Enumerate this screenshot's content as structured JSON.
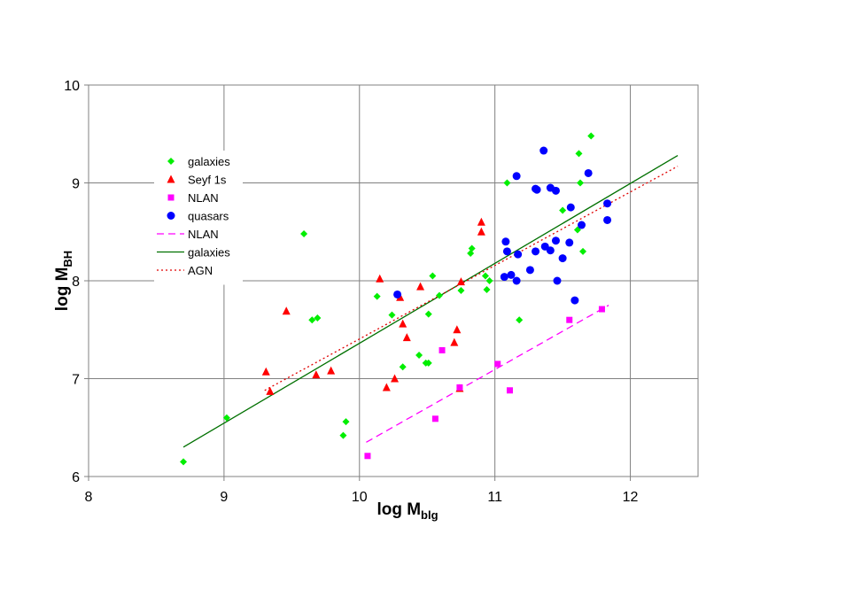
{
  "chart_data": {
    "type": "scatter",
    "xlabel": "log M",
    "xlabel_sub": "blg",
    "ylabel": "log M",
    "ylabel_sub": "BH",
    "xlim": [
      8,
      12.5
    ],
    "ylim": [
      6,
      10
    ],
    "x_ticks": [
      "8",
      "9",
      "10",
      "11",
      "12"
    ],
    "y_ticks": [
      "6",
      "7",
      "8",
      "9",
      "10"
    ],
    "grid": true,
    "legend_position": "left",
    "series": [
      {
        "name": "galaxies",
        "kind": "points",
        "marker": "diamond",
        "color": "#00ee00",
        "points": [
          [
            8.7,
            6.15
          ],
          [
            9.02,
            6.6
          ],
          [
            9.59,
            8.48
          ],
          [
            9.65,
            7.6
          ],
          [
            9.69,
            7.62
          ],
          [
            9.88,
            6.42
          ],
          [
            9.9,
            6.56
          ],
          [
            10.13,
            7.84
          ],
          [
            10.24,
            7.65
          ],
          [
            10.32,
            7.12
          ],
          [
            10.44,
            7.24
          ],
          [
            10.49,
            7.16
          ],
          [
            10.51,
            7.16
          ],
          [
            10.51,
            7.66
          ],
          [
            10.54,
            8.05
          ],
          [
            10.59,
            7.85
          ],
          [
            10.75,
            7.9
          ],
          [
            10.82,
            8.28
          ],
          [
            10.83,
            8.33
          ],
          [
            10.93,
            8.05
          ],
          [
            10.94,
            7.91
          ],
          [
            10.96,
            8.0
          ],
          [
            11.09,
            9.0
          ],
          [
            11.18,
            7.6
          ],
          [
            11.5,
            8.72
          ],
          [
            11.61,
            8.52
          ],
          [
            11.62,
            9.3
          ],
          [
            11.63,
            9.0
          ],
          [
            11.65,
            8.3
          ],
          [
            11.71,
            9.48
          ]
        ]
      },
      {
        "name": "Seyf 1s",
        "kind": "points",
        "marker": "triangle",
        "color": "#ff0000",
        "points": [
          [
            9.31,
            7.07
          ],
          [
            9.34,
            6.87
          ],
          [
            9.46,
            7.69
          ],
          [
            9.68,
            7.04
          ],
          [
            9.79,
            7.08
          ],
          [
            10.15,
            8.02
          ],
          [
            10.2,
            6.91
          ],
          [
            10.26,
            7.0
          ],
          [
            10.3,
            7.83
          ],
          [
            10.32,
            7.56
          ],
          [
            10.35,
            7.42
          ],
          [
            10.45,
            7.94
          ],
          [
            10.72,
            7.5
          ],
          [
            10.74,
            6.9
          ],
          [
            10.75,
            7.99
          ],
          [
            10.7,
            7.37
          ],
          [
            10.9,
            8.6
          ],
          [
            10.9,
            8.5
          ]
        ]
      },
      {
        "name": "NLAN",
        "kind": "points",
        "marker": "square",
        "color": "#ff00ff",
        "points": [
          [
            10.06,
            6.21
          ],
          [
            10.56,
            6.59
          ],
          [
            10.61,
            7.29
          ],
          [
            10.74,
            6.91
          ],
          [
            11.02,
            7.15
          ],
          [
            11.11,
            6.88
          ],
          [
            11.55,
            7.6
          ],
          [
            11.79,
            7.71
          ]
        ]
      },
      {
        "name": "quasars",
        "kind": "points",
        "marker": "circle",
        "color": "#0000ff",
        "points": [
          [
            10.28,
            7.86
          ],
          [
            11.07,
            8.04
          ],
          [
            11.08,
            8.4
          ],
          [
            11.09,
            8.3
          ],
          [
            11.12,
            8.06
          ],
          [
            11.16,
            8.0
          ],
          [
            11.16,
            9.07
          ],
          [
            11.17,
            8.27
          ],
          [
            11.26,
            8.11
          ],
          [
            11.3,
            8.3
          ],
          [
            11.3,
            8.94
          ],
          [
            11.31,
            8.93
          ],
          [
            11.36,
            9.33
          ],
          [
            11.37,
            8.35
          ],
          [
            11.41,
            8.31
          ],
          [
            11.41,
            8.95
          ],
          [
            11.45,
            8.41
          ],
          [
            11.45,
            8.92
          ],
          [
            11.46,
            8.0
          ],
          [
            11.5,
            8.23
          ],
          [
            11.55,
            8.39
          ],
          [
            11.56,
            8.75
          ],
          [
            11.59,
            7.8
          ],
          [
            11.64,
            8.57
          ],
          [
            11.69,
            9.1
          ],
          [
            11.83,
            8.79
          ],
          [
            11.83,
            8.62
          ]
        ]
      },
      {
        "name": "NLAN",
        "kind": "line",
        "dash": "dashed",
        "color": "#ff00ff",
        "points": [
          [
            10.05,
            6.35
          ],
          [
            11.84,
            7.75
          ]
        ]
      },
      {
        "name": "galaxies",
        "kind": "line",
        "dash": "solid",
        "color": "#007000",
        "points": [
          [
            8.7,
            6.3
          ],
          [
            12.35,
            9.28
          ]
        ]
      },
      {
        "name": "AGN",
        "kind": "line",
        "dash": "dotted",
        "color": "#e00000",
        "points": [
          [
            9.3,
            6.88
          ],
          [
            12.35,
            9.17
          ]
        ]
      }
    ]
  }
}
